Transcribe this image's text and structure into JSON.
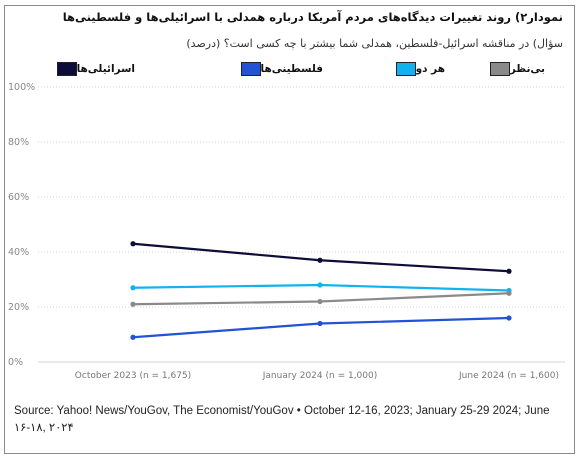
{
  "title": "نمودار۲) روند تغییرات دیدگاه‌های مردم آمریکا درباره همدلی با اسرائیلی‌ها و فلسطینی‌ها",
  "subtitle": "سؤال) در مناقشه اسرائیل-فلسطین، همدلی شما بیشتر با چه کسی است؟ (درصد)",
  "source": "Source: Yahoo! News/YouGov, The Economist/YouGov • October 12-16, 2023; January 25-29 2024; June ۱۶-۱۸, ۲۰۲۴",
  "chart_data": {
    "type": "line",
    "categories": [
      "October 2023 (n = 1,675)",
      "January 2024 (n = 1,000)",
      "June 2024 (n = 1,600)"
    ],
    "ylim": [
      0,
      100
    ],
    "yticks": [
      "0%",
      "20%",
      "40%",
      "60%",
      "80%",
      "100%"
    ],
    "ytick_values": [
      0,
      20,
      40,
      60,
      80,
      100
    ],
    "grid": true,
    "legend_position": "top",
    "series": [
      {
        "name": "اسرائیلی‌ها",
        "color": "#0d0d3a",
        "values": [
          43,
          37,
          33
        ]
      },
      {
        "name": "فلسطینی‌ها",
        "color": "#2352d6",
        "values": [
          9,
          14,
          16
        ]
      },
      {
        "name": "هر دو",
        "color": "#12b2ee",
        "values": [
          27,
          28,
          26
        ]
      },
      {
        "name": "بی‌نظر",
        "color": "#8a8a8a",
        "values": [
          21,
          22,
          25
        ]
      }
    ]
  }
}
